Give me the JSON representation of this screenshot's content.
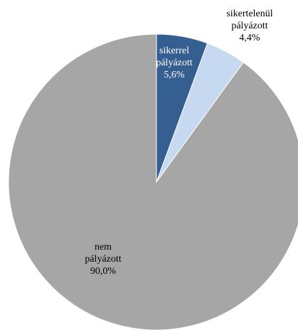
{
  "chart_data": {
    "type": "pie",
    "title": "",
    "start_angle_deg": 0,
    "direction": "clockwise",
    "legend": "none",
    "slices": [
      {
        "label_lines": [
          "sikerrel",
          "pályázott"
        ],
        "value": 5.6,
        "value_text": "5,6%",
        "color": "#365f91",
        "label_color": "#ffffff"
      },
      {
        "label_lines": [
          "sikertelenül",
          "pályázott"
        ],
        "value": 4.4,
        "value_text": "4,4%",
        "color": "#c6d9f1",
        "label_color": "#000000"
      },
      {
        "label_lines": [
          "nem",
          "pályázott"
        ],
        "value": 90.0,
        "value_text": "90,0%",
        "color": "#a6a6a6",
        "label_color": "#000000"
      }
    ]
  }
}
